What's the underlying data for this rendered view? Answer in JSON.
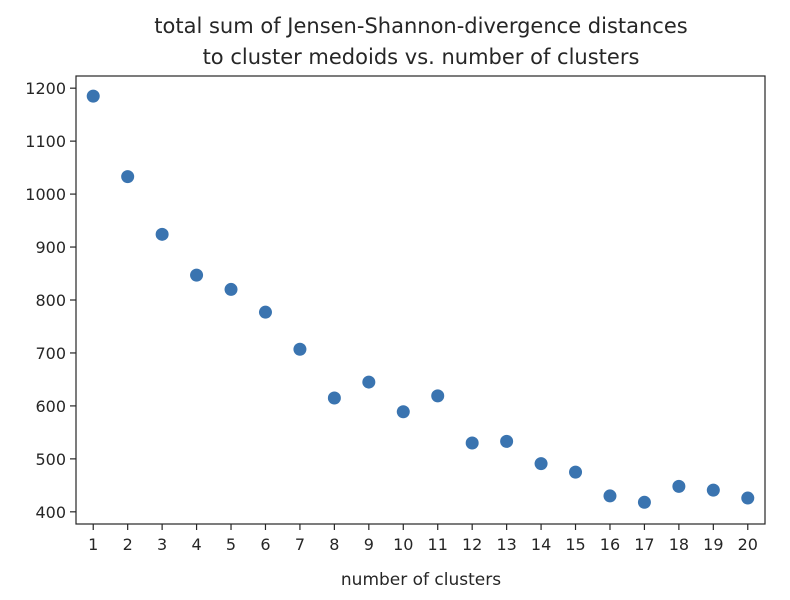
{
  "chart_data": {
    "type": "scatter",
    "title": "total sum of Jensen-Shannon-divergence distances\nto cluster medoids vs. number of clusters",
    "xlabel": "number of clusters",
    "ylabel": "",
    "x": [
      1,
      2,
      3,
      4,
      5,
      6,
      7,
      8,
      9,
      10,
      11,
      12,
      13,
      14,
      15,
      16,
      17,
      18,
      19,
      20
    ],
    "y": [
      1185,
      1033,
      924,
      847,
      820,
      777,
      707,
      615,
      645,
      589,
      619,
      530,
      533,
      491,
      475,
      430,
      418,
      448,
      441,
      426
    ],
    "xticks": [
      "1",
      "2",
      "3",
      "4",
      "5",
      "6",
      "7",
      "8",
      "9",
      "10",
      "11",
      "12",
      "13",
      "14",
      "15",
      "16",
      "17",
      "18",
      "19",
      "20"
    ],
    "yticks": [
      400,
      500,
      600,
      700,
      800,
      900,
      1000,
      1100,
      1200
    ],
    "xlim": [
      0.5,
      20.5
    ],
    "ylim": [
      377,
      1223
    ],
    "marker_color": "#3a74b0",
    "grid": false,
    "legend": false
  }
}
